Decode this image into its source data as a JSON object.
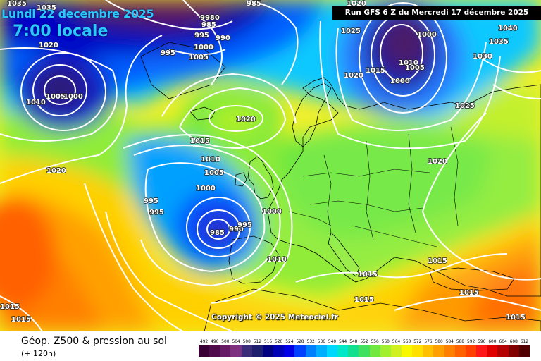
{
  "header": {
    "date": "Lundi 22 decembre 2025",
    "time": "7:00 locale",
    "run": "Run GFS 6 Z du Mercredi 17 décembre 2025"
  },
  "footer": {
    "copyright": "Copyright © 2025 Meteociel.fr",
    "title": "Géop. Z500 & pression au sol",
    "subtitle": "(+ 120h)"
  },
  "scale": {
    "values": [
      "492",
      "496",
      "500",
      "504",
      "508",
      "512",
      "516",
      "520",
      "524",
      "528",
      "532",
      "536",
      "540",
      "544",
      "548",
      "552",
      "556",
      "560",
      "564",
      "568",
      "572",
      "576",
      "580",
      "584",
      "588",
      "592",
      "596",
      "600",
      "604",
      "608",
      "612"
    ],
    "colors": [
      "#3a0035",
      "#4f0a4c",
      "#661a66",
      "#7d2f80",
      "#3b2c7a",
      "#1e1e6e",
      "#000080",
      "#0000b4",
      "#0000e6",
      "#0040ff",
      "#0080ff",
      "#00b0ff",
      "#00d8ff",
      "#00e8c8",
      "#10e090",
      "#40e060",
      "#70e840",
      "#a0f030",
      "#d0f020",
      "#f8f800",
      "#ffe000",
      "#ffc000",
      "#ffa000",
      "#ff8000",
      "#ff6000",
      "#ff4000",
      "#ff1818",
      "#e00000",
      "#b40000",
      "#800000",
      "#500000"
    ]
  },
  "isobar_labels": [
    "1035",
    "1035",
    "1020",
    "1010",
    "1005",
    "1000",
    "1020",
    "995",
    "1005",
    "1000",
    "985",
    "9980",
    "985",
    "995",
    "990",
    "1000",
    "1005",
    "995",
    "985",
    "1020",
    "1020",
    "1015",
    "1010",
    "1005",
    "1000",
    "995",
    "995",
    "985",
    "990",
    "995",
    "1000",
    "1010",
    "1025",
    "1020",
    "1015",
    "1000",
    "1010",
    "1005",
    "1000",
    "1040",
    "1035",
    "1030",
    "1020",
    "1025",
    "1020",
    "1015",
    "1015",
    "1015",
    "1015",
    "1015",
    "1020",
    "1015",
    "1015"
  ],
  "map_layers": {
    "coastline_color": "#000000",
    "isobar_color": "#ffffff",
    "high_field_color": "#ff7800",
    "low_field_color": "#4a0060"
  }
}
